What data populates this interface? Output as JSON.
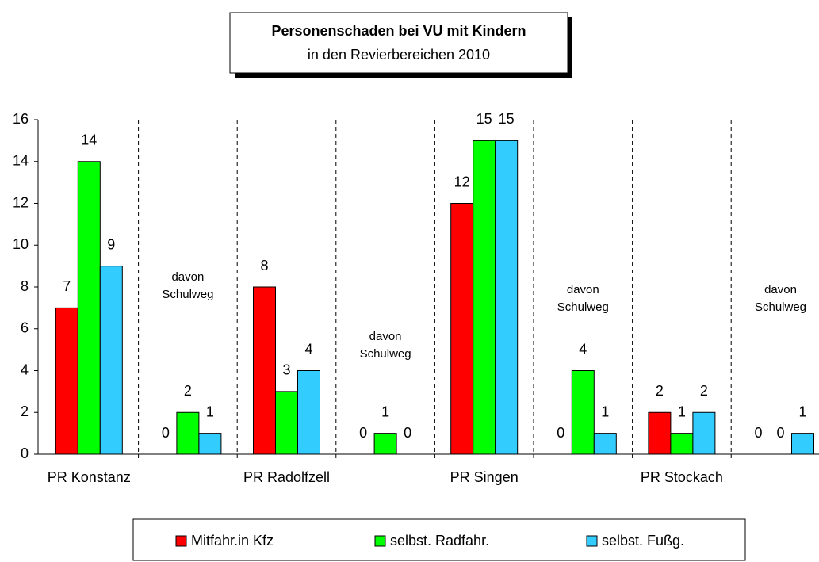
{
  "chart_data": {
    "type": "bar",
    "title": "Personenschaden bei VU mit Kindern",
    "subtitle": "in den Revierbereichen  2010",
    "categories": [
      "PR Konstanz",
      null,
      "PR Radolfzell",
      null,
      "PR Singen",
      null,
      "PR Stockach",
      null
    ],
    "series": [
      {
        "name": "Mitfahr.in Kfz",
        "color": "#ff0000",
        "values": [
          7,
          0,
          8,
          0,
          12,
          0,
          2,
          0
        ]
      },
      {
        "name": "selbst. Radfahr.",
        "color": "#00ff00",
        "values": [
          14,
          2,
          3,
          1,
          15,
          4,
          1,
          0
        ]
      },
      {
        "name": "selbst. Fußg.",
        "color": "#33ccff",
        "values": [
          9,
          1,
          4,
          0,
          15,
          1,
          2,
          1
        ]
      }
    ],
    "annotations": [
      [
        "davon",
        "Schulweg"
      ],
      [
        "davon",
        "Schulweg"
      ],
      [
        "davon",
        "Schulweg"
      ],
      [
        "davon",
        "Schulweg"
      ]
    ],
    "ylim": [
      0,
      16
    ],
    "yticks": [
      0,
      2,
      4,
      6,
      8,
      10,
      12,
      14,
      16
    ],
    "legend": "bottom"
  }
}
